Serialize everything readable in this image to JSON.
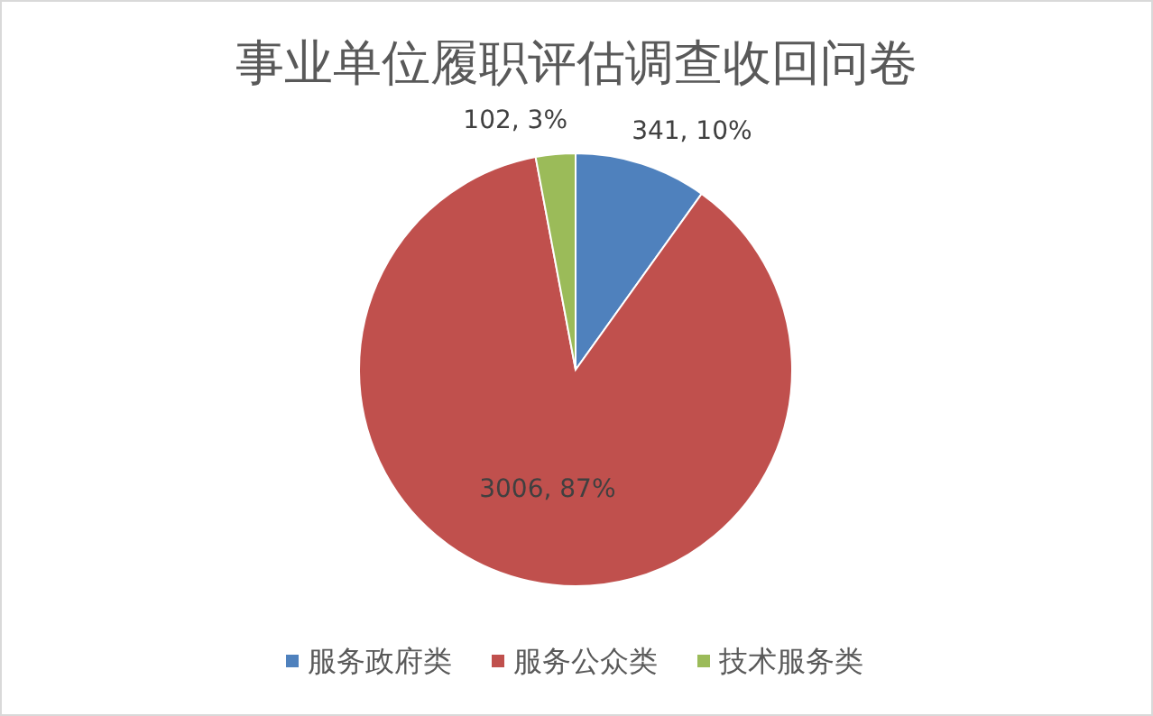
{
  "chart_data": {
    "type": "pie",
    "title": "事业单位履职评估调查收回问卷",
    "categories": [
      "服务政府类",
      "服务公众类",
      "技术服务类"
    ],
    "values": [
      341,
      3006,
      102
    ],
    "colors": [
      "#4f81bd",
      "#c0504d",
      "#9bbb59"
    ],
    "value_labels": [
      "341, 10%",
      "3006, 87%",
      "102, 3%"
    ],
    "legend": "bottom"
  }
}
